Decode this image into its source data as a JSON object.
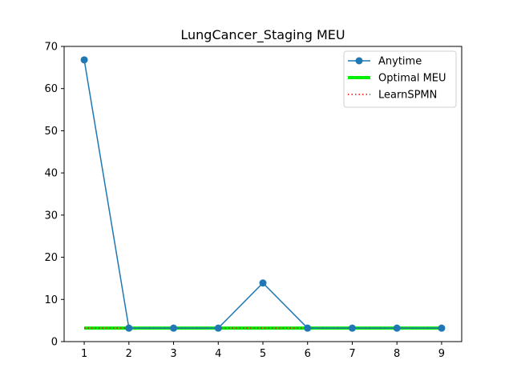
{
  "chart_data": {
    "type": "line",
    "title": "LungCancer_Staging MEU",
    "xlabel": "",
    "ylabel": "",
    "x": [
      1,
      2,
      3,
      4,
      5,
      6,
      7,
      8,
      9
    ],
    "xlim": [
      0.55,
      9.45
    ],
    "ylim": [
      0,
      70
    ],
    "xticks": [
      1,
      2,
      3,
      4,
      5,
      6,
      7,
      8,
      9
    ],
    "yticks": [
      0,
      10,
      20,
      30,
      40,
      50,
      60,
      70
    ],
    "grid": false,
    "legend_position": "top-right",
    "series": [
      {
        "name": "Anytime",
        "style": "solid-with-markers",
        "color": "#1f77b4",
        "values": [
          66.8,
          3.2,
          3.2,
          3.2,
          13.9,
          3.2,
          3.2,
          3.2,
          3.2
        ]
      },
      {
        "name": "Optimal MEU",
        "style": "thick-solid",
        "color": "#00ee00",
        "values": [
          3.2,
          3.2,
          3.2,
          3.2,
          3.2,
          3.2,
          3.2,
          3.2,
          3.2
        ]
      },
      {
        "name": "LearnSPMN",
        "style": "dotted",
        "color": "#ff0000",
        "values": [
          3.2,
          3.2,
          3.2,
          3.2,
          3.2,
          3.2,
          3.2,
          3.2,
          3.2
        ]
      }
    ]
  }
}
